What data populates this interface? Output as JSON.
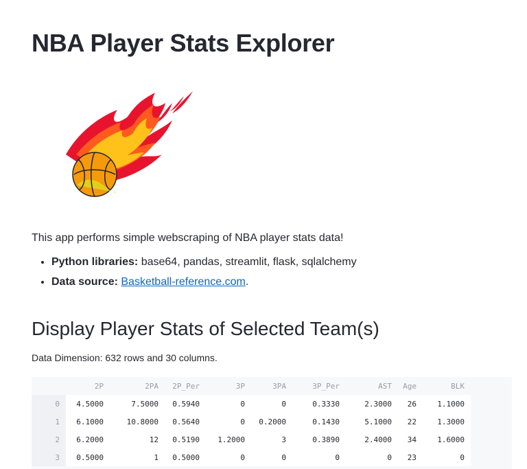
{
  "page": {
    "title": "NBA Player Stats Explorer",
    "intro": "This app performs simple webscraping of NBA player stats data!",
    "facts": [
      {
        "label": "Python libraries:",
        "text": " base64, pandas, streamlit, flask, sqlalchemy",
        "link": "",
        "suffix": ""
      },
      {
        "label": "Data source:",
        "text": " ",
        "link": "Basketball-reference.com",
        "suffix": "."
      }
    ],
    "section_title": "Display Player Stats of Selected Team(s)",
    "dimensions": "Data Dimension: 632 rows and 30 columns."
  },
  "logo": {
    "icon": "flaming-basketball-icon",
    "colors": {
      "flame_outer": "#e8142e",
      "flame_mid": "#ff5a1f",
      "flame_inner": "#ffc21a",
      "ball": "#f59a0c",
      "ball_shade": "#d9e620"
    }
  },
  "table": {
    "columns": [
      "2P",
      "2PA",
      "2P_Per",
      "3P",
      "3PA",
      "3P_Per",
      "AST",
      "Age",
      "BLK"
    ],
    "rows": [
      {
        "index": "0",
        "cells": [
          "4.5000",
          "7.5000",
          "0.5940",
          "0",
          "0",
          "0.3330",
          "2.3000",
          "26",
          "1.1000"
        ]
      },
      {
        "index": "1",
        "cells": [
          "6.1000",
          "10.8000",
          "0.5640",
          "0",
          "0.2000",
          "0.1430",
          "5.1000",
          "22",
          "1.3000"
        ]
      },
      {
        "index": "2",
        "cells": [
          "6.2000",
          "12",
          "0.5190",
          "1.2000",
          "3",
          "0.3890",
          "2.4000",
          "34",
          "1.6000"
        ]
      },
      {
        "index": "3",
        "cells": [
          "0.5000",
          "1",
          "0.5000",
          "0",
          "0",
          "0",
          "0",
          "23",
          "0"
        ]
      }
    ]
  }
}
